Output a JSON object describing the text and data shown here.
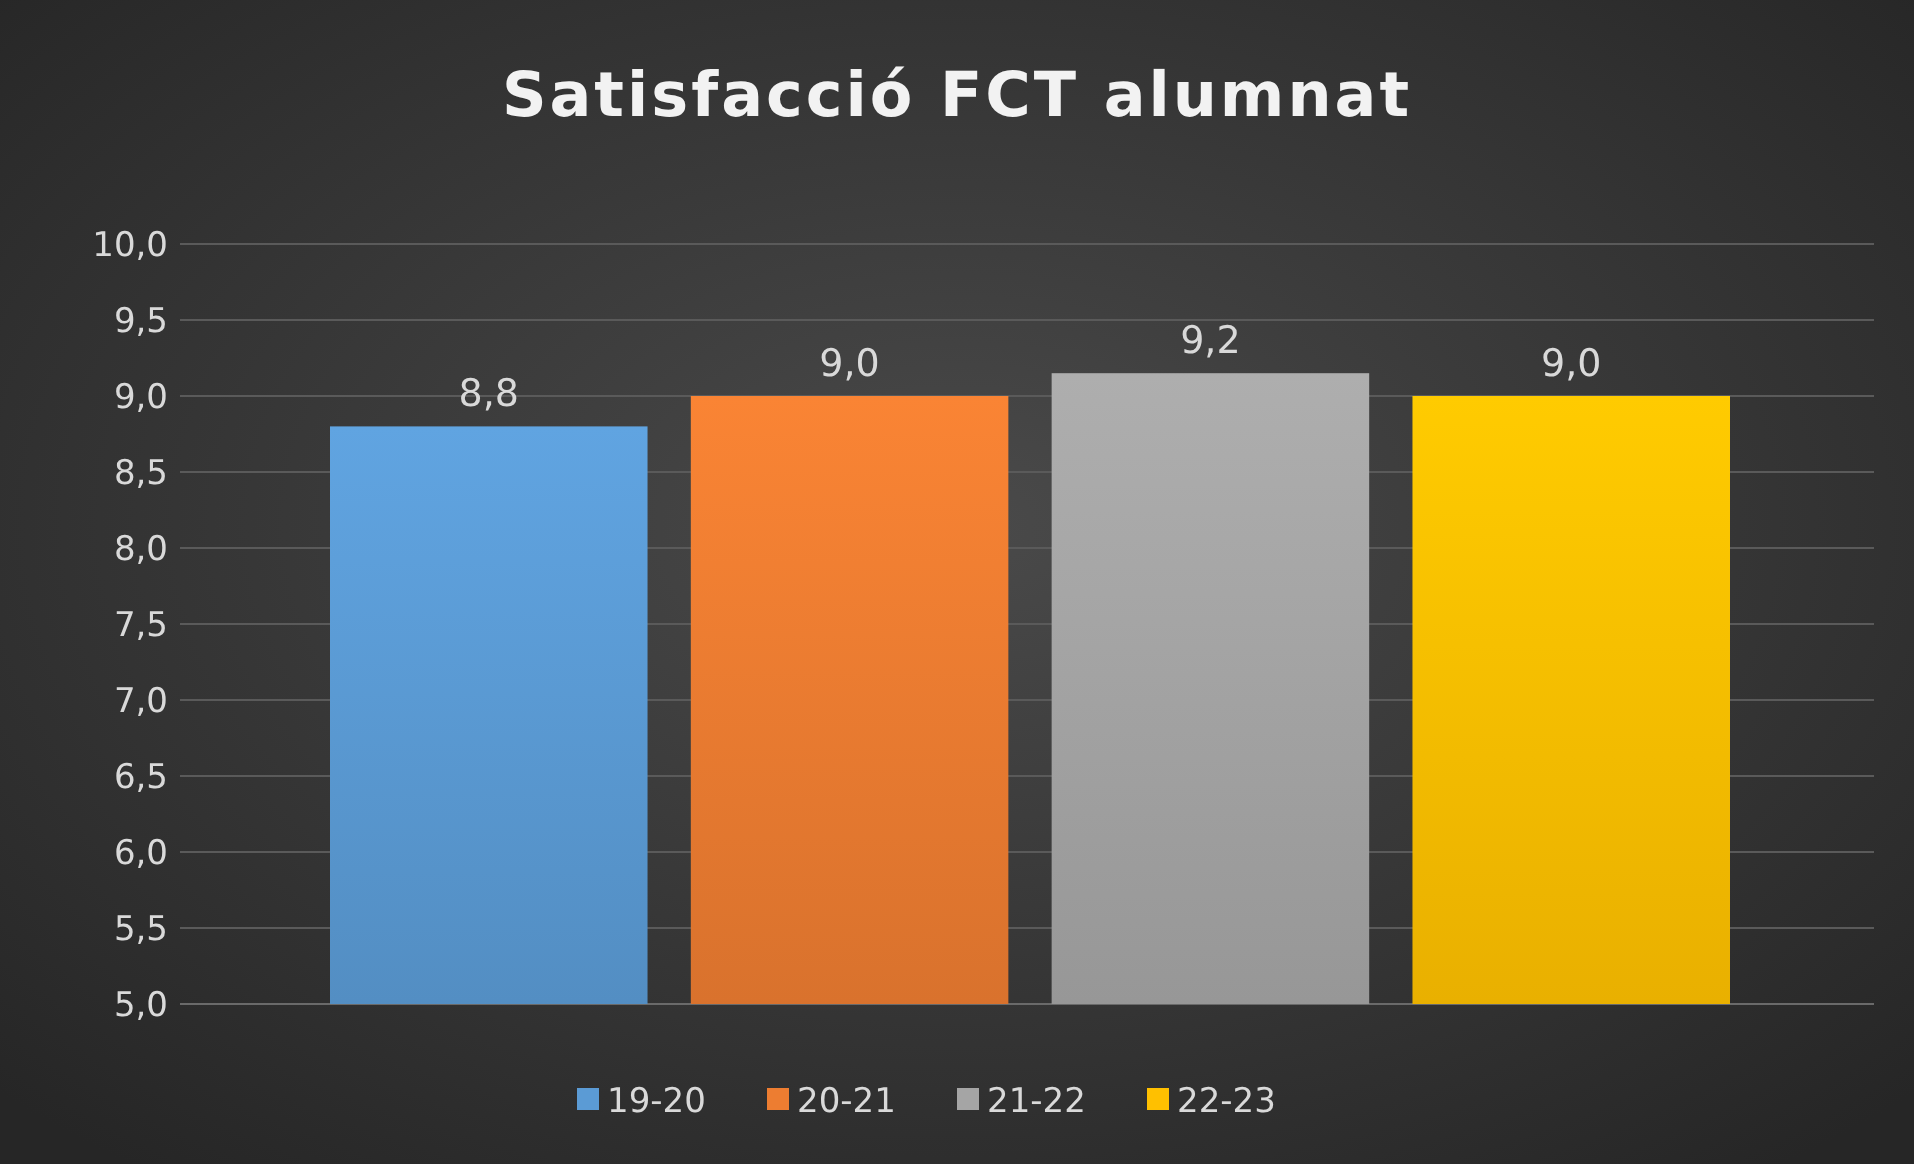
{
  "chart_data": {
    "type": "bar",
    "title": "Satisfacció FCT alumnat",
    "categories": [
      null
    ],
    "series": [
      {
        "name": "19-20",
        "color": "#5b9bd5",
        "values": [
          8.8
        ],
        "value_labels": [
          "8,8"
        ]
      },
      {
        "name": "20-21",
        "color": "#ed7d31",
        "values": [
          9.0
        ],
        "value_labels": [
          "9,0"
        ]
      },
      {
        "name": "21-22",
        "color": "#a5a5a5",
        "values": [
          9.15
        ],
        "value_labels": [
          "9,2"
        ]
      },
      {
        "name": "22-23",
        "color": "#ffc000",
        "values": [
          9.0
        ],
        "value_labels": [
          "9,0"
        ]
      }
    ],
    "ylim": [
      5,
      10
    ],
    "yticks": [
      {
        "value": 5,
        "label": "5,0"
      },
      {
        "value": 5.5,
        "label": "5,5"
      },
      {
        "value": 6,
        "label": "6,0"
      },
      {
        "value": 6.5,
        "label": "6,5"
      },
      {
        "value": 7,
        "label": "7,0"
      },
      {
        "value": 7.5,
        "label": "7,5"
      },
      {
        "value": 8,
        "label": "8,0"
      },
      {
        "value": 8.5,
        "label": "8,5"
      },
      {
        "value": 9,
        "label": "9,0"
      },
      {
        "value": 9.5,
        "label": "9,5"
      },
      {
        "value": 10,
        "label": "10,0"
      }
    ],
    "grid": "y",
    "legend": "bottom"
  }
}
